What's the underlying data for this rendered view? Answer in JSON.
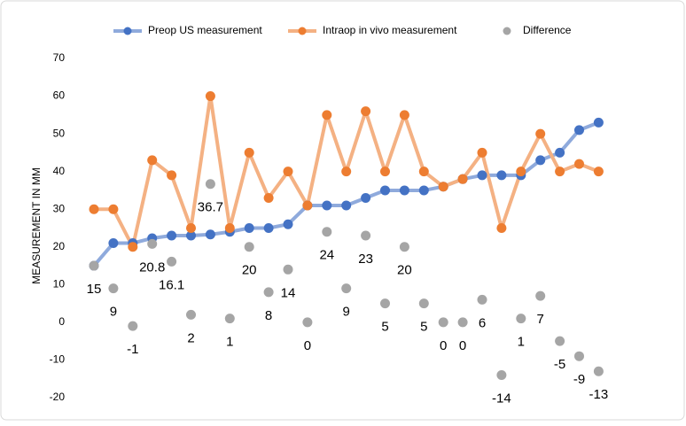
{
  "chart_data": {
    "type": "line",
    "ylabel": "MEASUREMENT IN MM",
    "ylim": [
      -20,
      70
    ],
    "yticks": [
      -20,
      -10,
      0,
      10,
      20,
      30,
      40,
      50,
      60,
      70
    ],
    "grid": false,
    "legend": "top",
    "series": [
      {
        "name": "Preop US measurement",
        "color": "#4472c4",
        "line_color": "#8faadc",
        "values": [
          15,
          21,
          21,
          22.3,
          23,
          23,
          23.3,
          24,
          25,
          25,
          26,
          31,
          31,
          31,
          33,
          35,
          35,
          35,
          36,
          38,
          39,
          39,
          39,
          43,
          45,
          51,
          53
        ]
      },
      {
        "name": "Intraop in vivo measurement",
        "color": "#ed7d31",
        "line_color": "#f4b183",
        "values": [
          30,
          30,
          20,
          43,
          39,
          25,
          60,
          25,
          45,
          33,
          40,
          31,
          55,
          40,
          56,
          40,
          55,
          40,
          36,
          38,
          45,
          25,
          40,
          50,
          40,
          42,
          40
        ]
      },
      {
        "name": "Difference",
        "color": "#a5a5a5",
        "markers_only": true,
        "data_labels": true,
        "values": [
          15,
          9,
          -1,
          20.8,
          16.1,
          2,
          36.7,
          1,
          20,
          8,
          14,
          0,
          24,
          9,
          23,
          5,
          20,
          5,
          0,
          0,
          6,
          -14,
          1,
          7,
          -5,
          -9,
          -13
        ]
      }
    ]
  }
}
